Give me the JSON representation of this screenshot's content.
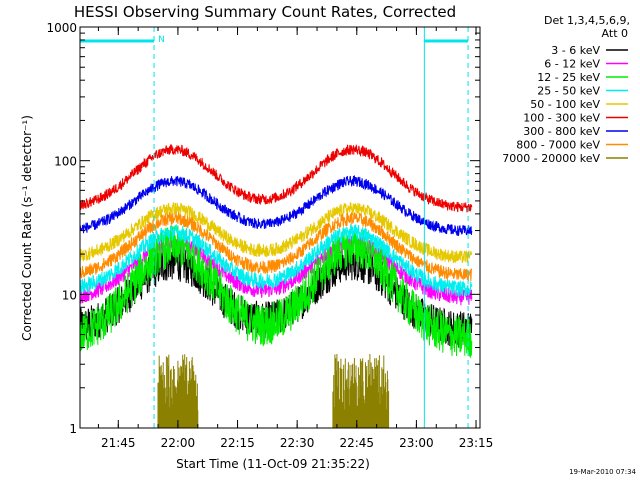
{
  "chart_data": {
    "type": "line",
    "title": "HESSI Observing Summary Count Rates, Corrected",
    "xlabel": "Start Time (11-Oct-09 21:35:22)",
    "ylabel": "Corrected Count Rate (s⁻¹ detector⁻¹)",
    "y_scale": "log",
    "ylim": [
      1,
      1000
    ],
    "xlim": [
      "21:35:22",
      "23:16:00"
    ],
    "x_ticks": [
      "21:45",
      "22:00",
      "22:15",
      "22:30",
      "22:45",
      "23:00",
      "23:15"
    ],
    "y_ticks": [
      "1",
      "10",
      "100",
      "1000"
    ],
    "legend_header": [
      "Det 1,3,4,5,6,9,",
      "Att 0"
    ],
    "legend_position": "right-outside",
    "markers": [
      {
        "type": "solid-vertical",
        "color": "#00e5ee",
        "times": [
          "23:02"
        ]
      },
      {
        "type": "dashed-vertical",
        "color": "#00e5ee",
        "times": [
          "21:54",
          "23:13"
        ]
      },
      {
        "type": "top-bar",
        "color": "#00e5ee",
        "segments": [
          [
            "21:35:22",
            "21:54"
          ],
          [
            "23:02",
            "23:13"
          ]
        ],
        "label": "N"
      }
    ],
    "series": [
      {
        "name": "3 - 6 keV",
        "color": "#000000",
        "min": 5.5,
        "max": 18,
        "noise": 0.14
      },
      {
        "name": "6 - 12 keV",
        "color": "#ff00ff",
        "min": 9.5,
        "max": 25,
        "noise": 0.06
      },
      {
        "name": "12 - 25 keV",
        "color": "#00ee00",
        "min": 4.8,
        "max": 24,
        "noise": 0.16
      },
      {
        "name": "25 - 50 keV",
        "color": "#00eeee",
        "min": 11,
        "max": 30,
        "noise": 0.06
      },
      {
        "name": "50 - 100 keV",
        "color": "#e6c800",
        "min": 19,
        "max": 45,
        "noise": 0.05
      },
      {
        "name": "100 - 300 keV",
        "color": "#ee0000",
        "min": 45,
        "max": 125,
        "noise": 0.04
      },
      {
        "name": "300 - 800 keV",
        "color": "#0000ee",
        "min": 30,
        "max": 72,
        "noise": 0.04
      },
      {
        "name": "800 - 7000 keV",
        "color": "#ff8c00",
        "min": 14,
        "max": 38,
        "noise": 0.05
      },
      {
        "name": "7000 - 20000 keV",
        "color": "#8b8000",
        "min": 1,
        "max": 3.6,
        "noise": 0,
        "bursts": [
          [
            "21:55",
            "22:05"
          ],
          [
            "22:39",
            "22:53"
          ]
        ]
      }
    ],
    "peaks": [
      "21:59",
      "22:44"
    ]
  },
  "timestamp": "19-Mar-2010 07:34"
}
